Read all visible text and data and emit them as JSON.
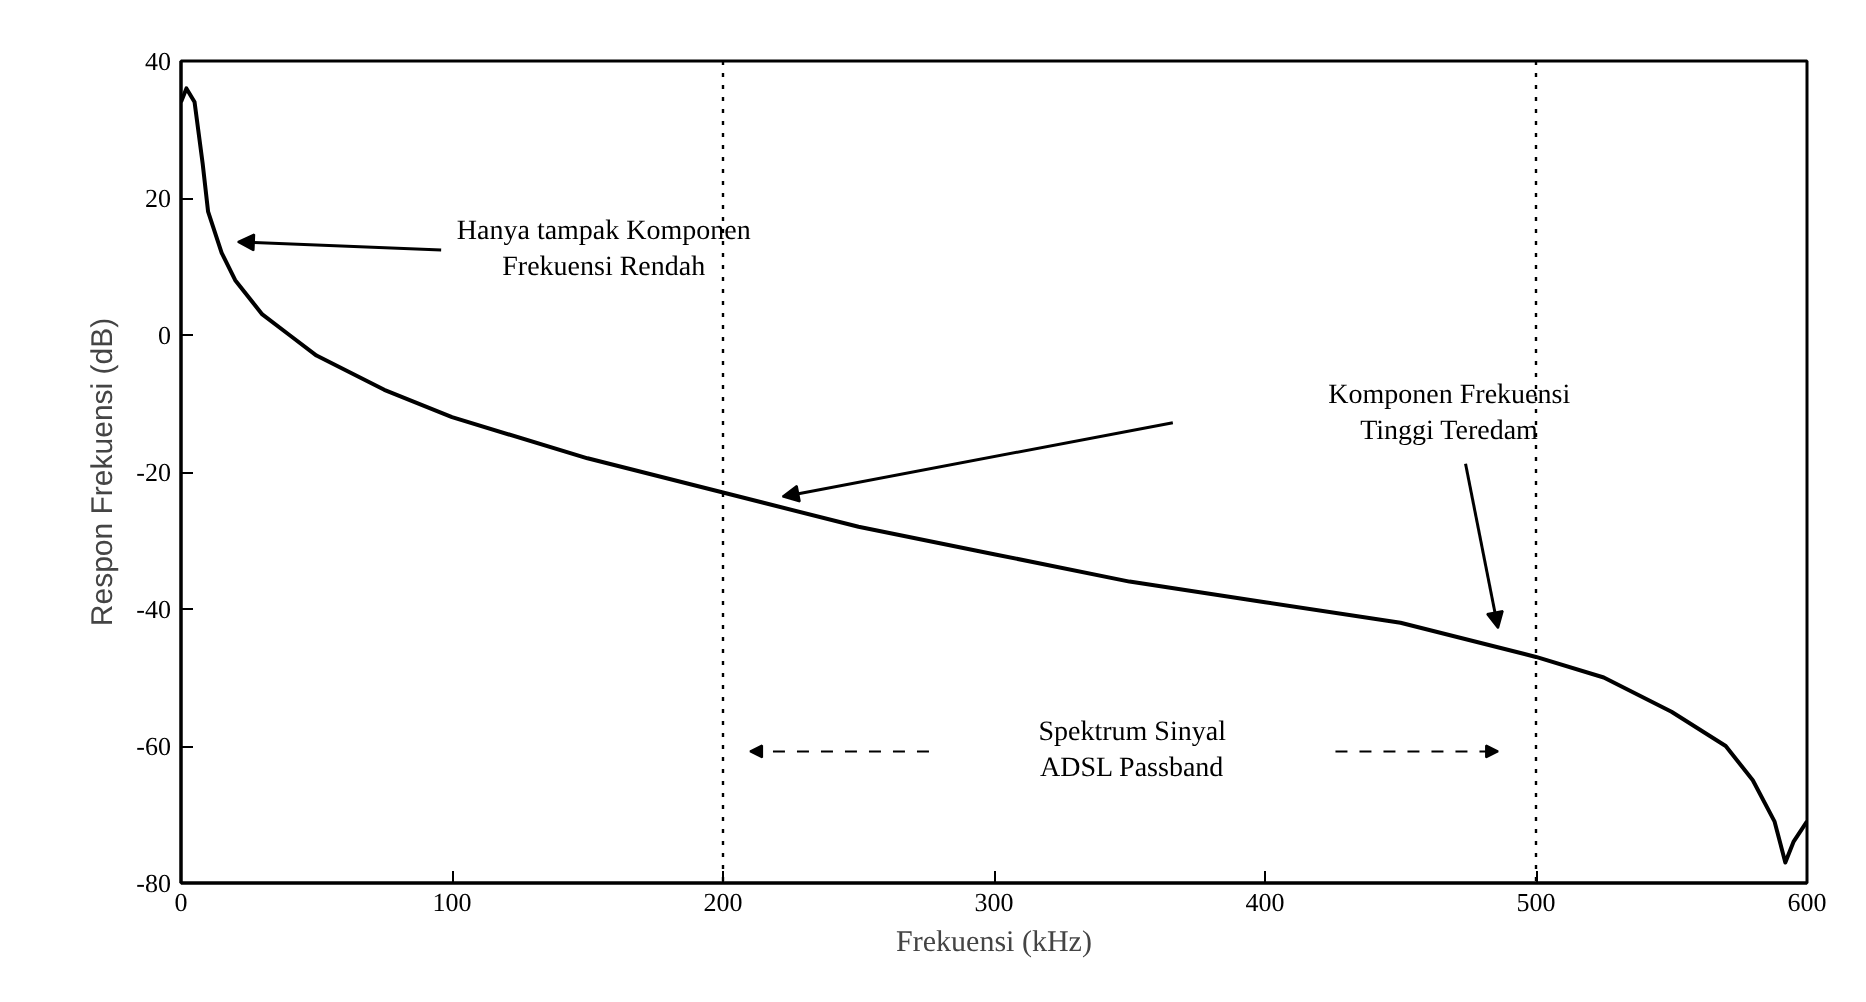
{
  "chart_data": {
    "type": "line",
    "xlabel": "Frekuensi (kHz)",
    "ylabel": "Respon Frekuensi (dB)",
    "x": [
      0,
      2,
      5,
      8,
      10,
      15,
      20,
      30,
      40,
      50,
      75,
      100,
      150,
      200,
      250,
      300,
      350,
      400,
      450,
      500,
      525,
      550,
      570,
      580,
      588,
      592,
      595,
      600
    ],
    "series": [
      {
        "color": "#000000",
        "values": [
          34,
          36,
          34,
          25,
          18,
          12,
          8,
          3,
          0,
          -3,
          -8,
          -12,
          -18,
          -23,
          -28,
          -32,
          -36,
          -39,
          -42,
          -47,
          -50,
          -55,
          -60,
          -65,
          -71,
          -77,
          -74,
          -71
        ]
      }
    ],
    "xlim": [
      0,
      600
    ],
    "xticks": [
      0,
      100,
      200,
      300,
      400,
      500,
      600
    ],
    "ylim": [
      -80,
      40
    ],
    "yticks": [
      -80,
      -60,
      -40,
      -20,
      0,
      20,
      40
    ],
    "grid": false,
    "marker": "none",
    "line_style": "solid",
    "ref_lines": [
      {
        "axis": "x",
        "value": 200,
        "line_style": "dotted"
      },
      {
        "axis": "x",
        "value": 500,
        "line_style": "dotted"
      }
    ],
    "annotations": [
      "Hanya tampak Komponen\nFrekuensi Rendah",
      "Komponen Frekuensi\nTinggi Teredam",
      "Spektrum Sinyal\nADSL Passband"
    ]
  }
}
